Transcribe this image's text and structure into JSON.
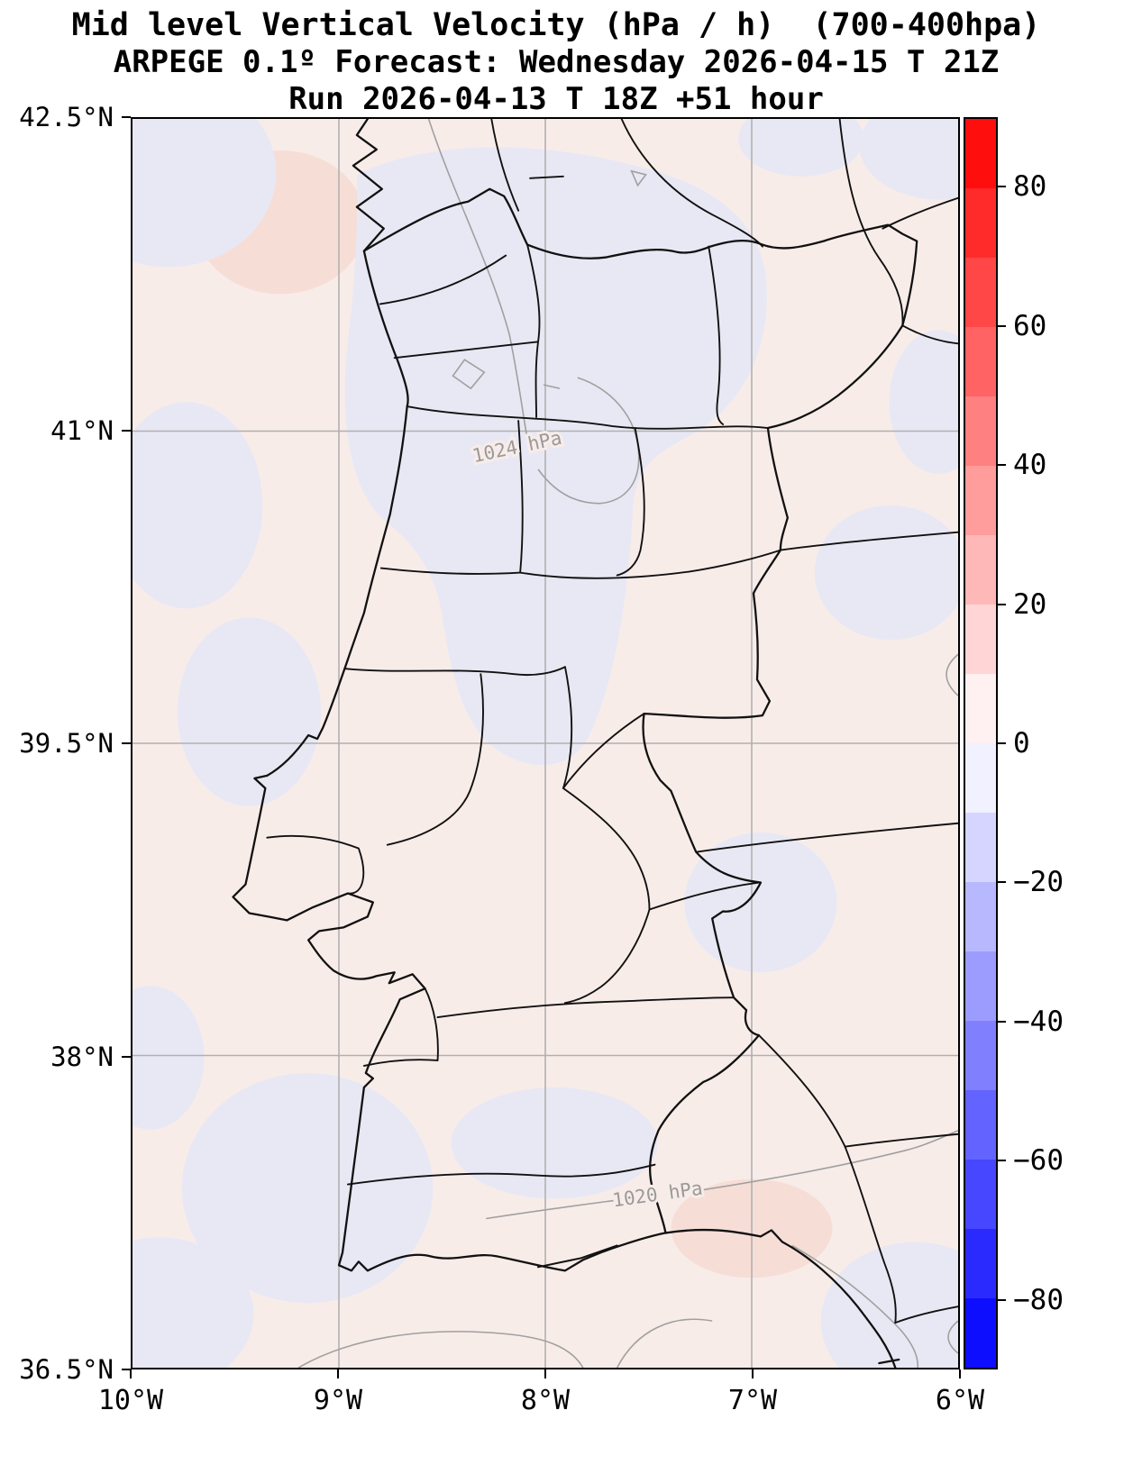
{
  "title": {
    "line1": "Mid level Vertical Velocity (hPa / h)  (700-400hpa)",
    "line2": "ARPEGE 0.1º Forecast: Wednesday 2026-04-15 T 21Z",
    "line3": "Run 2026-04-13 T 18Z +51 hour"
  },
  "axes": {
    "lat_min": 36.5,
    "lat_max": 42.5,
    "lon_west_max": 10,
    "lon_west_min": 6,
    "y_ticks": [
      {
        "label": "42.5°N",
        "lat": 42.5
      },
      {
        "label": "41°N",
        "lat": 41.0
      },
      {
        "label": "39.5°N",
        "lat": 39.5
      },
      {
        "label": "38°N",
        "lat": 38.0
      },
      {
        "label": "36.5°N",
        "lat": 36.5
      }
    ],
    "x_ticks": [
      {
        "label": "10°W",
        "lon_west": 10
      },
      {
        "label": "9°W",
        "lon_west": 9
      },
      {
        "label": "8°W",
        "lon_west": 8
      },
      {
        "label": "7°W",
        "lon_west": 7
      },
      {
        "label": "6°W",
        "lon_west": 6
      }
    ]
  },
  "colorbar": {
    "vmin": -90,
    "vmax": 90,
    "band_step": 10,
    "bands": [
      "#ff0e0e",
      "#ff2a2a",
      "#ff4747",
      "#ff6363",
      "#ff8080",
      "#ff9c9c",
      "#ffb8b8",
      "#ffd5d5",
      "#fff1f1",
      "#f1f1ff",
      "#d5d5ff",
      "#b8b8ff",
      "#9c9cff",
      "#8080ff",
      "#6363ff",
      "#4747ff",
      "#2a2aff",
      "#0e0eff"
    ],
    "ticks": [
      {
        "label": "80",
        "value": 80
      },
      {
        "label": "60",
        "value": 60
      },
      {
        "label": "40",
        "value": 40
      },
      {
        "label": "20",
        "value": 20
      },
      {
        "label": "0",
        "value": 0
      },
      {
        "label": "−20",
        "value": -20
      },
      {
        "label": "−40",
        "value": -40
      },
      {
        "label": "−60",
        "value": -60
      },
      {
        "label": "−80",
        "value": -80
      }
    ]
  },
  "map": {
    "isobar_labels": [
      {
        "text": "1024 hPa"
      },
      {
        "text": "1020 hPa"
      }
    ]
  },
  "colors": {
    "weak_positive_fill": "#f8ece9",
    "stronger_positive_fill": "#f6ded7",
    "weak_negative_fill": "#e8e8f4",
    "gridline": "#b0b0b0",
    "boundary_line": "#111111",
    "isobar_line": "#a0a0a0",
    "isobar_label": "#9a9a9a"
  },
  "chart_data": {
    "type": "heatmap",
    "title": "Mid level Vertical Velocity (hPa / h)  (700-400hpa)",
    "subtitle": "ARPEGE 0.1º Forecast: Wednesday 2026-04-15 T 21Z",
    "run_line": "Run 2026-04-13 T 18Z +51 hour",
    "model": "ARPEGE 0.1º",
    "variable": "Mid level Vertical Velocity",
    "units": "hPa / h",
    "layer": "700-400hpa",
    "valid_time": "Wednesday 2026-04-15 T 21Z",
    "run_time": "2026-04-13 T 18Z",
    "forecast_hour": 51,
    "xlabel": "",
    "ylabel": "",
    "x_axis": {
      "tick_labels": [
        "10°W",
        "9°W",
        "8°W",
        "7°W",
        "6°W"
      ],
      "range_deg_west": [
        10,
        6
      ]
    },
    "y_axis": {
      "tick_labels": [
        "42.5°N",
        "41°N",
        "39.5°N",
        "38°N",
        "36.5°N"
      ],
      "range_deg_north": [
        36.5,
        42.5
      ]
    },
    "grid": true,
    "legend_position": "right-colorbar",
    "colorbar_tick_values": [
      80,
      60,
      40,
      20,
      0,
      -20,
      -40,
      -60,
      -80
    ],
    "colorbar_range": [
      -90,
      90
    ],
    "colormap": "blue-white-red (negative = blue = rising, positive = red = sinking)",
    "field_summary": "Vertical velocity over Portugal/western Iberia is weak everywhere: broad areas of faint positive values (0 to +10 hPa/h, pale pink) with scattered patches of faint negative values (-10 to 0 hPa/h, pale blue-lavender) over NW Iberia, central Portugal, the lower Alentejo/Algarve and map corners",
    "overlaid_isobars_hpa": [
      1024,
      1020
    ],
    "geography": "Map of Portugal and western Spain with district/province boundaries, 36.5°N-42.5°N, 10°W-6°W"
  }
}
